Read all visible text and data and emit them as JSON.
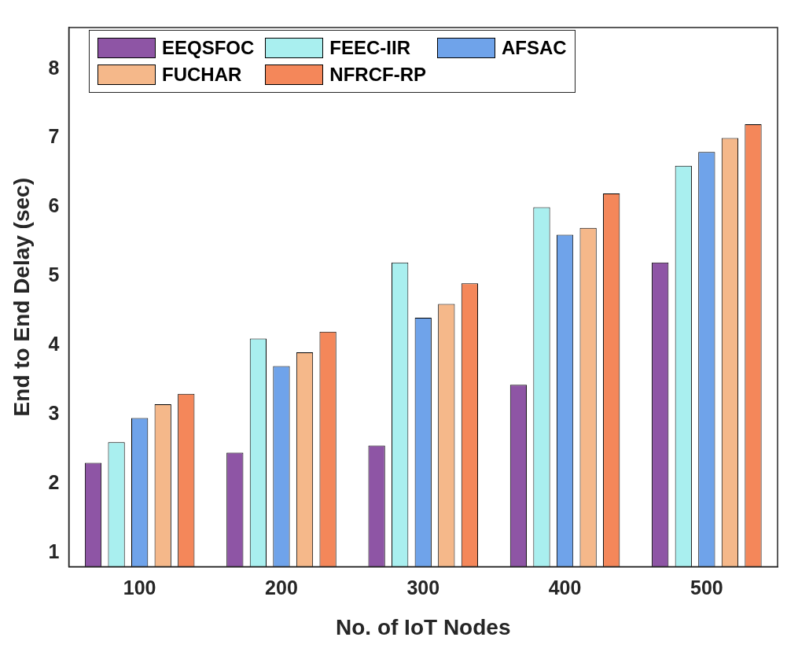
{
  "chart_data": {
    "type": "bar",
    "xlabel": "No. of IoT Nodes",
    "ylabel": "End to End Delay (sec)",
    "categories": [
      "100",
      "200",
      "300",
      "400",
      "500"
    ],
    "series": [
      {
        "name": "EEQSFOC",
        "color": "#8e55a5",
        "values": [
          2.3,
          2.45,
          2.55,
          3.43,
          5.2
        ]
      },
      {
        "name": "FEEC-IIR",
        "color": "#a9efef",
        "values": [
          2.6,
          4.1,
          5.2,
          6.0,
          6.6
        ]
      },
      {
        "name": "AFSAC",
        "color": "#6fa3ea",
        "values": [
          2.95,
          3.7,
          4.4,
          5.6,
          6.8
        ]
      },
      {
        "name": "FUCHAR",
        "color": "#f5b88a",
        "values": [
          3.15,
          3.9,
          4.6,
          5.7,
          7.0
        ]
      },
      {
        "name": "NFRCF-RP",
        "color": "#f4875a",
        "values": [
          3.3,
          4.2,
          4.9,
          6.2,
          7.2
        ]
      }
    ],
    "ylim": [
      0.8,
      8.6
    ],
    "yticks": [
      1,
      2,
      3,
      4,
      5,
      6,
      7,
      8
    ],
    "grid": false,
    "legend": "top left"
  }
}
